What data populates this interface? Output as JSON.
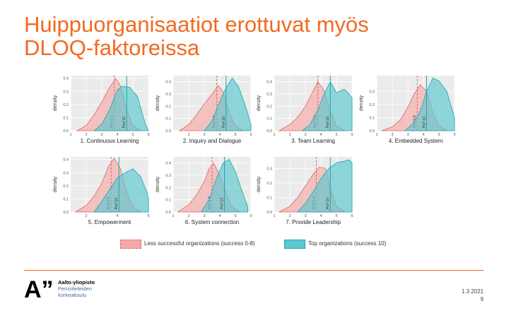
{
  "slide": {
    "title_line1": "Huippuorganisaatiot erottuvat myös",
    "title_line2": "DLOQ-faktoreissa",
    "date": "1.3.2021",
    "page": "9"
  },
  "logo": {
    "mark": "A”",
    "line1": "Aalto-yliopisto",
    "line2": "Perustieteiden",
    "line3": "korkeakoulu"
  },
  "legend": {
    "less_label": "Less successful organizations (success 0-8)",
    "top_label": "Top organizations (success 10)",
    "less_fill": "#f4a9a8",
    "less_stroke": "#e06666",
    "top_fill": "#5bc8d0",
    "top_stroke": "#1aa6b0"
  },
  "chart_data": [
    {
      "type": "area",
      "title": "1. Continuous Learning",
      "ylabel": "density",
      "xlim": [
        1,
        6
      ],
      "ylim": [
        0,
        0.42
      ],
      "xticks": [
        "1",
        "2",
        "3",
        "4",
        "5",
        "6"
      ],
      "yticks": [
        "0.0",
        "0.1",
        "0.2",
        "0.3",
        "0.4"
      ],
      "series": [
        {
          "name": "Less successful organizations (success 0-8)",
          "x": [
            1.4,
            2.0,
            2.5,
            3.0,
            3.5,
            3.9,
            4.2,
            4.6,
            5.0,
            5.5
          ],
          "y": [
            0.0,
            0.04,
            0.12,
            0.22,
            0.33,
            0.4,
            0.34,
            0.16,
            0.04,
            0.0
          ],
          "mark": 3.8,
          "mark_label": "Perf 0-8"
        },
        {
          "name": "Top organizations (success 10)",
          "x": [
            2.5,
            3.0,
            3.5,
            4.0,
            4.3,
            4.8,
            5.3,
            5.8,
            6.0
          ],
          "y": [
            0.0,
            0.05,
            0.16,
            0.31,
            0.34,
            0.33,
            0.26,
            0.05,
            0.0
          ],
          "mark": 4.6,
          "mark_label": "Perf 10"
        }
      ]
    },
    {
      "type": "area",
      "title": "2. Inquiry and Dialogue",
      "ylabel": "density",
      "xlim": [
        1,
        6
      ],
      "ylim": [
        0,
        0.45
      ],
      "xticks": [
        "2",
        "3",
        "4",
        "5",
        "6"
      ],
      "yticks": [
        "0.0",
        "0.1",
        "0.2",
        "0.3",
        "0.4"
      ],
      "series": [
        {
          "name": "Less successful organizations (success 0-8)",
          "x": [
            1.4,
            2.0,
            2.5,
            3.0,
            3.5,
            3.9,
            4.2,
            4.6,
            5.0,
            5.5
          ],
          "y": [
            0.0,
            0.05,
            0.13,
            0.22,
            0.3,
            0.37,
            0.32,
            0.15,
            0.04,
            0.0
          ],
          "mark": 3.8,
          "mark_label": "Perf 0-8"
        },
        {
          "name": "Top organizations (success 10)",
          "x": [
            3.0,
            3.5,
            4.0,
            4.4,
            4.8,
            5.2,
            5.6,
            6.0
          ],
          "y": [
            0.0,
            0.08,
            0.24,
            0.35,
            0.43,
            0.36,
            0.22,
            0.05
          ],
          "mark": 4.4,
          "mark_label": "Perf 10"
        }
      ]
    },
    {
      "type": "area",
      "title": "3. Team Learning",
      "ylabel": "density",
      "xlim": [
        1,
        6
      ],
      "ylim": [
        0,
        0.45
      ],
      "xticks": [
        "1",
        "2",
        "3",
        "4",
        "5",
        "6"
      ],
      "yticks": [
        "0.0",
        "0.1",
        "0.2",
        "0.3",
        "0.4"
      ],
      "series": [
        {
          "name": "Less successful organizations (success 0-8)",
          "x": [
            1.3,
            2.0,
            2.5,
            3.0,
            3.4,
            3.8,
            4.2,
            4.6,
            5.0,
            5.5
          ],
          "y": [
            0.0,
            0.05,
            0.11,
            0.2,
            0.3,
            0.4,
            0.33,
            0.16,
            0.04,
            0.0
          ],
          "mark": 3.8,
          "mark_label": "Perf 0-8"
        },
        {
          "name": "Top organizations (success 10)",
          "x": [
            2.8,
            3.3,
            3.8,
            4.2,
            4.6,
            5.0,
            5.5,
            5.8,
            6.0
          ],
          "y": [
            0.0,
            0.05,
            0.17,
            0.3,
            0.4,
            0.31,
            0.34,
            0.3,
            0.27
          ],
          "mark": 4.6,
          "mark_label": "Perf 10"
        }
      ]
    },
    {
      "type": "area",
      "title": "4. Embedded System",
      "ylabel": "density",
      "xlim": [
        1,
        6
      ],
      "ylim": [
        0,
        0.42
      ],
      "xticks": [
        "1",
        "2",
        "3",
        "4",
        "5",
        "6"
      ],
      "yticks": [
        "0.0",
        "0.1",
        "0.2",
        "0.3"
      ],
      "series": [
        {
          "name": "Less successful organizations (success 0-8)",
          "x": [
            1.3,
            2.0,
            2.5,
            3.0,
            3.4,
            3.8,
            4.2,
            4.6,
            5.0,
            5.5
          ],
          "y": [
            0.0,
            0.03,
            0.08,
            0.18,
            0.28,
            0.35,
            0.3,
            0.14,
            0.04,
            0.0
          ],
          "mark": 3.6,
          "mark_label": "Perf 0-8"
        },
        {
          "name": "Top organizations (success 10)",
          "x": [
            2.8,
            3.3,
            3.8,
            4.2,
            4.6,
            5.0,
            5.5,
            5.8,
            6.0
          ],
          "y": [
            0.0,
            0.05,
            0.15,
            0.3,
            0.4,
            0.38,
            0.3,
            0.18,
            0.1
          ],
          "mark": 4.2,
          "mark_label": "Perf 10"
        }
      ]
    },
    {
      "type": "area",
      "title": "5. Empowerment",
      "ylabel": "density",
      "xlim": [
        1,
        6
      ],
      "ylim": [
        0,
        0.42
      ],
      "xticks": [
        "2",
        "4",
        "6"
      ],
      "yticks": [
        "0.0",
        "0.1",
        "0.2",
        "0.3",
        "0.4"
      ],
      "series": [
        {
          "name": "Less successful organizations (success 0-8)",
          "x": [
            1.3,
            2.0,
            2.5,
            3.0,
            3.4,
            3.8,
            4.2,
            4.6,
            5.0,
            5.5
          ],
          "y": [
            0.0,
            0.05,
            0.12,
            0.22,
            0.34,
            0.41,
            0.33,
            0.15,
            0.04,
            0.0
          ],
          "mark": 3.6,
          "mark_label": "Perf 0-8"
        },
        {
          "name": "Top organizations (success 10)",
          "x": [
            2.5,
            3.0,
            3.5,
            4.0,
            4.5,
            5.0,
            5.5,
            5.9,
            6.0
          ],
          "y": [
            0.0,
            0.08,
            0.17,
            0.26,
            0.3,
            0.33,
            0.27,
            0.15,
            0.1
          ],
          "mark": 4.1,
          "mark_label": "Perf 10"
        }
      ]
    },
    {
      "type": "area",
      "title": "6. System connection",
      "ylabel": "density",
      "xlim": [
        1,
        6
      ],
      "ylim": [
        0,
        0.45
      ],
      "xticks": [
        "1",
        "2",
        "3",
        "4",
        "5",
        "6"
      ],
      "yticks": [
        "0.0",
        "0.1",
        "0.2",
        "0.3",
        "0.4"
      ],
      "series": [
        {
          "name": "Less successful organizations (success 0-8)",
          "x": [
            1.3,
            2.0,
            2.5,
            3.0,
            3.3,
            3.6,
            4.0,
            4.4,
            4.8,
            5.3
          ],
          "y": [
            0.0,
            0.06,
            0.14,
            0.25,
            0.35,
            0.4,
            0.3,
            0.15,
            0.04,
            0.0
          ],
          "mark": 3.5,
          "mark_label": "Perf 0-8"
        },
        {
          "name": "Top organizations (success 10)",
          "x": [
            2.8,
            3.3,
            3.8,
            4.2,
            4.6,
            5.0,
            5.4,
            5.8
          ],
          "y": [
            0.0,
            0.1,
            0.28,
            0.4,
            0.43,
            0.33,
            0.18,
            0.04
          ],
          "mark": 4.3,
          "mark_label": "Perf 10"
        }
      ]
    },
    {
      "type": "area",
      "title": "7. Provide Leadership",
      "ylabel": "density",
      "xlim": [
        1,
        6
      ],
      "ylim": [
        0,
        0.38
      ],
      "xticks": [
        "1",
        "2",
        "3",
        "4",
        "5",
        "6"
      ],
      "yticks": [
        "0.0",
        "0.1",
        "0.2",
        "0.3"
      ],
      "series": [
        {
          "name": "Less successful organizations (success 0-8)",
          "x": [
            1.3,
            2.0,
            2.5,
            3.0,
            3.5,
            3.9,
            4.3,
            4.6,
            5.0,
            5.5
          ],
          "y": [
            0.0,
            0.04,
            0.1,
            0.18,
            0.26,
            0.31,
            0.3,
            0.16,
            0.04,
            0.0
          ],
          "mark": 3.7,
          "mark_label": "Perf 0-8"
        },
        {
          "name": "Top organizations (success 10)",
          "x": [
            2.5,
            3.0,
            3.5,
            4.0,
            4.5,
            5.0,
            5.5,
            5.8,
            6.0
          ],
          "y": [
            0.0,
            0.06,
            0.14,
            0.23,
            0.3,
            0.34,
            0.35,
            0.36,
            0.34
          ],
          "mark": 4.6,
          "mark_label": "Perf 10"
        }
      ]
    }
  ]
}
